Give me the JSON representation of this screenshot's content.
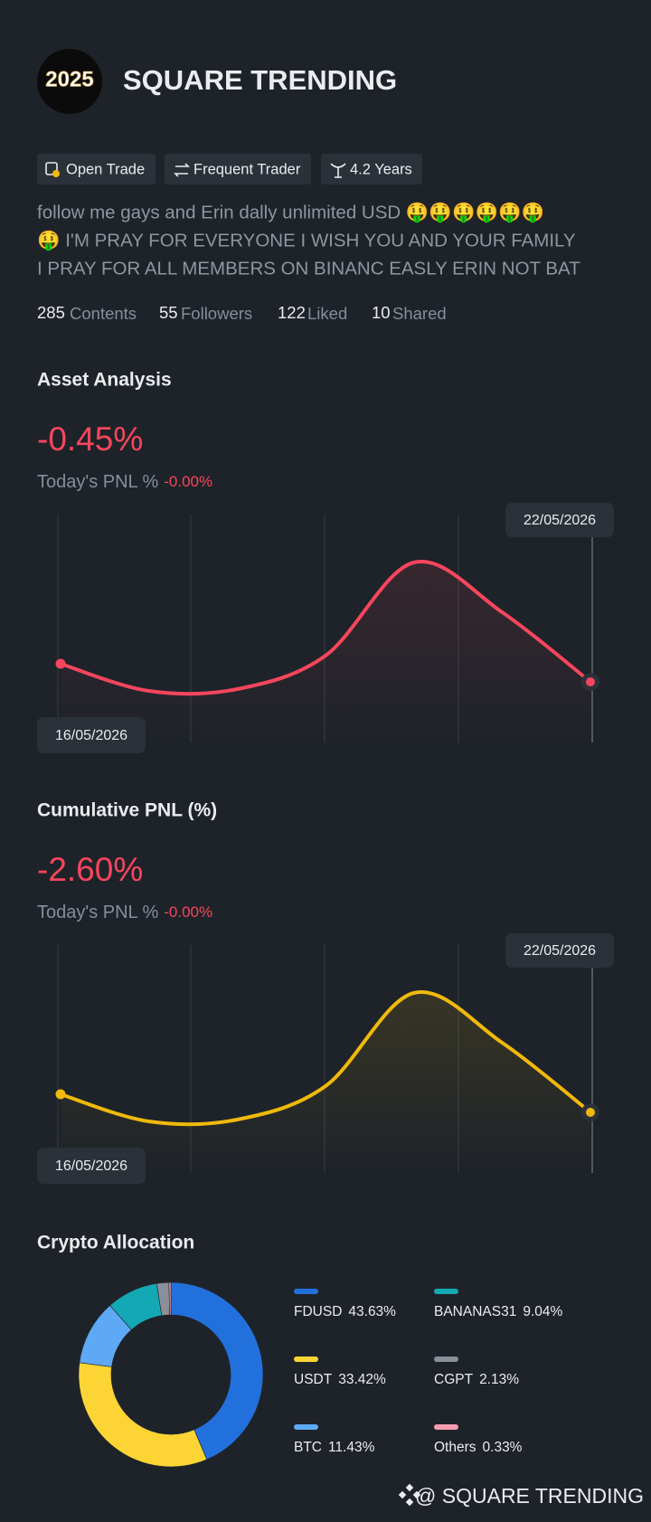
{
  "profile": {
    "avatar_text": "2025",
    "name": "SQUARE TRENDING",
    "tags": [
      "Open Trade",
      "Frequent Trader",
      "4.2 Years"
    ],
    "bio": [
      "follow me gays and Erin dally unlimited USD 🤑🤑🤑🤑🤑🤑",
      "🤑 I'M PRAY FOR EVERYONE I WISH YOU AND YOUR FAMILY",
      "I PRAY FOR ALL MEMBERS ON BINANC EASLY ERIN NOT BAT"
    ],
    "stats": [
      {
        "value": 285,
        "label": "Contents"
      },
      {
        "value": 55,
        "label": "Followers"
      },
      {
        "value": 122,
        "label": "Liked"
      },
      {
        "value": 10,
        "label": "Shared"
      }
    ]
  },
  "sections": [
    {
      "title": "Asset Analysis",
      "headline": "-0.45%",
      "pnl_label": "Today's PNL %",
      "pnl_value": "-0.00%",
      "chart_data": {
        "type": "line",
        "x": [
          "16/05/2026",
          null,
          null,
          null,
          null,
          null,
          "22/05/2026"
        ],
        "values": [
          87,
          57,
          59,
          96,
          199,
          144,
          67
        ],
        "color": "#f6465d"
      }
    },
    {
      "title": "Cumulative PNL (%)",
      "headline": "-2.60%",
      "pnl_label": "Today's PNL %",
      "pnl_value": "-0.00%",
      "chart_data": {
        "type": "line",
        "x": [
          "16/05/2026",
          null,
          null,
          null,
          null,
          null,
          "22/05/2026"
        ],
        "values": [
          87,
          57,
          59,
          96,
          199,
          144,
          67
        ],
        "color": "#f0b90b"
      }
    }
  ],
  "allocation": {
    "title": "Crypto Allocation",
    "chart_data": {
      "type": "donut",
      "categories": [
        "FDUSD",
        "USDT",
        "BTC",
        "BANANAS31",
        "CGPT",
        "Others"
      ],
      "values": [
        43.63,
        33.42,
        11.43,
        9.04,
        2.13,
        0.33
      ],
      "value_labels": [
        "43.63%",
        "33.42%",
        "11.43%",
        "9.04%",
        "2.13%",
        "0.33%"
      ],
      "colors": [
        "#2270dc",
        "#fcd535",
        "#5ea9f5",
        "#14a8b5",
        "#8a8f99",
        "#f29db0"
      ]
    }
  },
  "footer": "@ SQUARE TRENDING"
}
